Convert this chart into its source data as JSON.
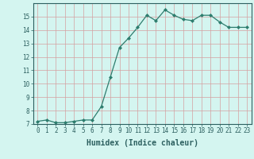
{
  "x": [
    0,
    1,
    2,
    3,
    4,
    5,
    6,
    7,
    8,
    9,
    10,
    11,
    12,
    13,
    14,
    15,
    16,
    17,
    18,
    19,
    20,
    21,
    22,
    23
  ],
  "y": [
    7.2,
    7.3,
    7.1,
    7.1,
    7.2,
    7.3,
    7.3,
    8.3,
    10.5,
    12.7,
    13.4,
    14.2,
    15.1,
    14.7,
    15.5,
    15.1,
    14.8,
    14.7,
    15.1,
    15.1,
    14.6,
    14.2,
    14.2,
    14.2
  ],
  "xlabel": "Humidex (Indice chaleur)",
  "ylim": [
    7,
    16
  ],
  "xlim": [
    -0.5,
    23.5
  ],
  "yticks": [
    7,
    8,
    9,
    10,
    11,
    12,
    13,
    14,
    15
  ],
  "xticks": [
    0,
    1,
    2,
    3,
    4,
    5,
    6,
    7,
    8,
    9,
    10,
    11,
    12,
    13,
    14,
    15,
    16,
    17,
    18,
    19,
    20,
    21,
    22,
    23
  ],
  "line_color": "#2d7d6e",
  "bg_color": "#d4f5f0",
  "grid_color_v": "#d4a0a0",
  "grid_color_h": "#d4a0a0",
  "font_color": "#2d6060",
  "tick_fontsize": 5.5,
  "xlabel_fontsize": 7.0
}
